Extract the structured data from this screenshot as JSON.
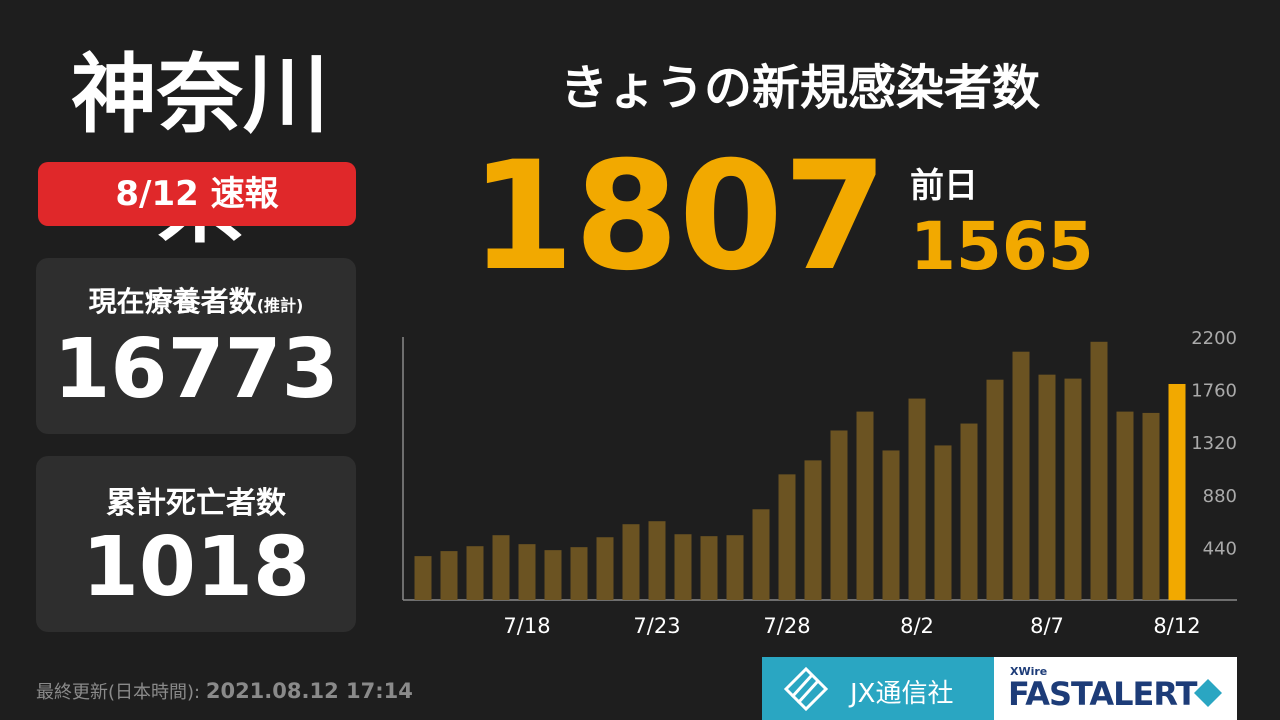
{
  "header": {
    "prefecture": "神奈川県",
    "badge": "8/12 速報"
  },
  "stats": {
    "current_label": "現在療養者数",
    "current_note": "(推計)",
    "current_value": 16773,
    "deaths_label": "累計死亡者数",
    "deaths_value": 1018
  },
  "headline": {
    "title": "きょうの新規感染者数",
    "today": 1807,
    "previous_label": "前日",
    "previous": 1565
  },
  "footer": {
    "updated_label": "最終更新(日本時間):",
    "updated": "2021.08.12 17:14",
    "company": "JX通信社",
    "brand_small": "XWire",
    "brand": "FASTALERT"
  },
  "chart_data": {
    "type": "bar",
    "categories": [
      null,
      null,
      null,
      null,
      "7/18",
      null,
      null,
      null,
      null,
      "7/23",
      null,
      null,
      null,
      null,
      "7/28",
      null,
      null,
      null,
      null,
      "8/2",
      null,
      null,
      null,
      null,
      "8/7",
      null,
      null,
      null,
      null,
      "8/12"
    ],
    "values": [
      367,
      409,
      450,
      542,
      467,
      417,
      442,
      525,
      634,
      659,
      550,
      534,
      542,
      759,
      1051,
      1168,
      1418,
      1576,
      1251,
      1685,
      1293,
      1476,
      1843,
      2077,
      1885,
      1852,
      2160,
      1576,
      1565,
      1807
    ],
    "colors": [
      "#6b5322",
      "#6b5322",
      "#6b5322",
      "#6b5322",
      "#6b5322",
      "#6b5322",
      "#6b5322",
      "#6b5322",
      "#6b5322",
      "#6b5322",
      "#6b5322",
      "#6b5322",
      "#6b5322",
      "#6b5322",
      "#6b5322",
      "#6b5322",
      "#6b5322",
      "#6b5322",
      "#6b5322",
      "#6b5322",
      "#6b5322",
      "#6b5322",
      "#6b5322",
      "#6b5322",
      "#6b5322",
      "#6b5322",
      "#6b5322",
      "#6b5322",
      "#6b5322",
      "#f2a900"
    ],
    "ylim": [
      0,
      2200
    ],
    "yticks": [
      440,
      880,
      1320,
      1760,
      2200
    ],
    "grid": false
  }
}
